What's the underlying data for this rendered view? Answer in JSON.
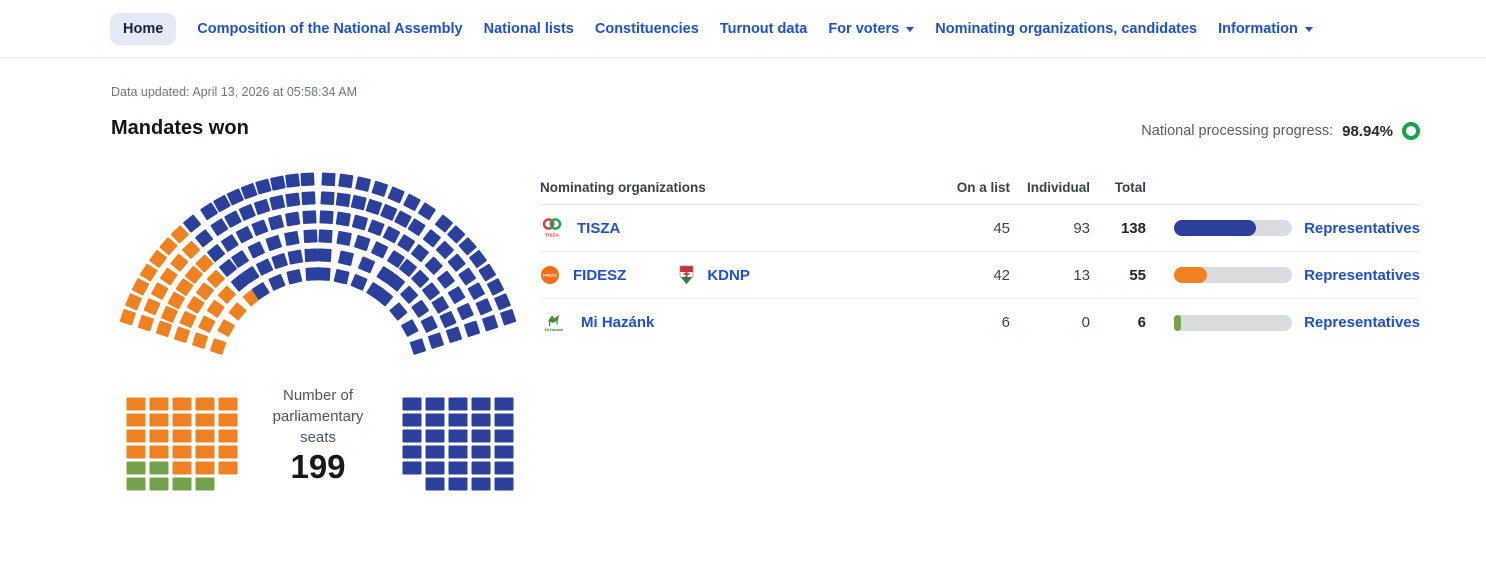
{
  "nav": {
    "items": [
      {
        "label": "Home",
        "active": true,
        "dropdown": false
      },
      {
        "label": "Composition of the National Assembly",
        "active": false,
        "dropdown": false
      },
      {
        "label": "National lists",
        "active": false,
        "dropdown": false
      },
      {
        "label": "Constituencies",
        "active": false,
        "dropdown": false
      },
      {
        "label": "Turnout data",
        "active": false,
        "dropdown": false
      },
      {
        "label": "For voters",
        "active": false,
        "dropdown": true
      },
      {
        "label": "Nominating organizations, candidates",
        "active": false,
        "dropdown": false
      },
      {
        "label": "Information",
        "active": false,
        "dropdown": true
      }
    ]
  },
  "status": {
    "data_updated": "Data updated: April 13, 2026 at 05:58:34 AM"
  },
  "header": {
    "title": "Mandates won",
    "progress_label": "National processing progress:",
    "progress_value": "98.94%",
    "progress_ring_color": "#17a34a"
  },
  "hemicycle": {
    "center_label_lines": [
      "Number of",
      "parliamentary",
      "seats"
    ],
    "total_seats": "199"
  },
  "table": {
    "headers": {
      "org": "Nominating organizations",
      "on_list": "On a list",
      "individual": "Individual",
      "total": "Total"
    },
    "rows": [
      {
        "parties": [
          {
            "name": "TISZA"
          }
        ],
        "on_list": "45",
        "individual": "93",
        "total": "138",
        "link": "Representatives"
      },
      {
        "parties": [
          {
            "name": "FIDESZ"
          },
          {
            "name": "KDNP"
          }
        ],
        "on_list": "42",
        "individual": "13",
        "total": "55",
        "link": "Representatives"
      },
      {
        "parties": [
          {
            "name": "Mi Hazánk"
          }
        ],
        "on_list": "6",
        "individual": "0",
        "total": "6",
        "link": "Representatives"
      }
    ]
  },
  "chart_data": {
    "type": "parliament",
    "title": "Mandates won",
    "total_seats": 199,
    "series": [
      {
        "name": "TISZA",
        "seats": 138,
        "on_list": 45,
        "individual": 93,
        "color": "#2b3f9c"
      },
      {
        "name": "FIDESZ–KDNP",
        "seats": 55,
        "on_list": 42,
        "individual": 13,
        "color": "#ef8120"
      },
      {
        "name": "Mi Hazánk",
        "seats": 6,
        "on_list": 6,
        "individual": 0,
        "color": "#74a14b"
      }
    ]
  }
}
